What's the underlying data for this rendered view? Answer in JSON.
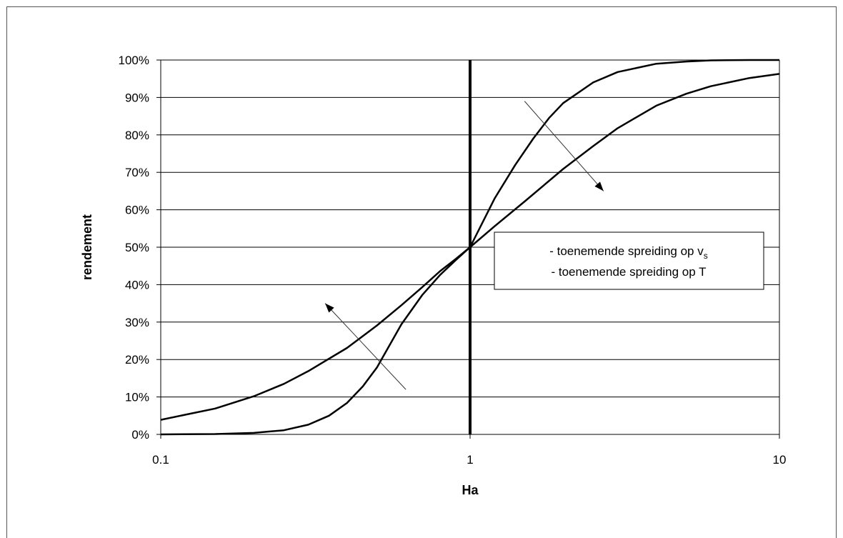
{
  "chart_data": {
    "type": "line",
    "xlabel": "Ha",
    "ylabel": "rendement",
    "x_scale": "log",
    "xlim": [
      0.1,
      10
    ],
    "ylim": [
      0,
      100
    ],
    "x_ticks": [
      "0.1",
      "1",
      "10"
    ],
    "y_ticks": [
      "0%",
      "10%",
      "20%",
      "30%",
      "40%",
      "50%",
      "60%",
      "70%",
      "80%",
      "90%",
      "100%"
    ],
    "grid": "horizontal",
    "series": [
      {
        "x": [
          0.1,
          0.15,
          0.2,
          0.25,
          0.3,
          0.35,
          0.4,
          0.45,
          0.5,
          0.6,
          0.7,
          0.8,
          0.9,
          1,
          1.2,
          1.4,
          1.6,
          1.8,
          2,
          2.5,
          3,
          4,
          5,
          6,
          8,
          10
        ],
        "values": [
          0.0,
          0.1,
          0.4,
          1.1,
          2.6,
          5.0,
          8.4,
          12.8,
          17.9,
          29.4,
          37.2,
          42.6,
          46.6,
          50.0,
          63.0,
          72.0,
          79.0,
          84.5,
          88.5,
          94.0,
          96.8,
          99.0,
          99.6,
          99.9,
          100.0,
          100.0
        ]
      },
      {
        "x": [
          0.1,
          0.15,
          0.2,
          0.25,
          0.3,
          0.4,
          0.5,
          0.6,
          0.7,
          0.8,
          0.9,
          1,
          1.2,
          1.5,
          2,
          2.5,
          3,
          4,
          5,
          6,
          8,
          10
        ],
        "values": [
          3.9,
          6.9,
          10.2,
          13.5,
          16.9,
          23.1,
          29.1,
          34.5,
          39.3,
          43.6,
          46.9,
          50.0,
          55.6,
          62.2,
          70.9,
          77.0,
          81.8,
          87.8,
          91.0,
          93.0,
          95.2,
          96.3
        ]
      }
    ],
    "reference_line": {
      "x": 1,
      "style": "bold vertical"
    },
    "annotations": [
      {
        "type": "arrow",
        "from": {
          "x": 1.5,
          "y": 89
        },
        "to": {
          "x": 2.7,
          "y": 65
        }
      },
      {
        "type": "arrow",
        "from": {
          "x": 0.62,
          "y": 12
        },
        "to": {
          "x": 0.34,
          "y": 35
        }
      }
    ],
    "legend": {
      "placement": "right-center",
      "lines": [
        {
          "text": "- toenemende spreiding op v",
          "subscript": "s"
        },
        {
          "text": "- toenemende spreiding op T",
          "subscript": ""
        }
      ]
    }
  }
}
